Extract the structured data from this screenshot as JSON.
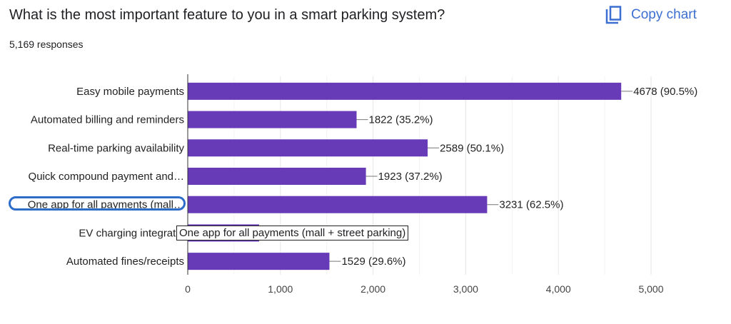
{
  "title": "What is the most important feature to you in a smart parking system?",
  "responses": "5,169 responses",
  "copy_label": "Copy chart",
  "tooltip": "One app for all payments (mall + street parking)",
  "colors": {
    "bar": "#673ab7",
    "accent": "#3c6fd1"
  },
  "chart_data": {
    "type": "bar",
    "orientation": "horizontal",
    "categories": [
      "Easy mobile payments",
      "Automated billing and reminders",
      "Real-time parking availability",
      "Quick compound payment and…",
      "One app for all payments (mall…",
      "EV charging integratio",
      "Automated fines/receipts"
    ],
    "values": [
      4678,
      1822,
      2589,
      1923,
      3231,
      770,
      1529
    ],
    "labels": [
      "4678 (90.5%)",
      "1822 (35.2%)",
      "2589 (50.1%)",
      "1923 (37.2%)",
      "3231 (62.5%)",
      "",
      "1529 (29.6%)"
    ],
    "xlim": [
      0,
      5000
    ],
    "xticks": [
      "0",
      "1,000",
      "2,000",
      "3,000",
      "4,000",
      "5,000"
    ],
    "grid": true
  }
}
